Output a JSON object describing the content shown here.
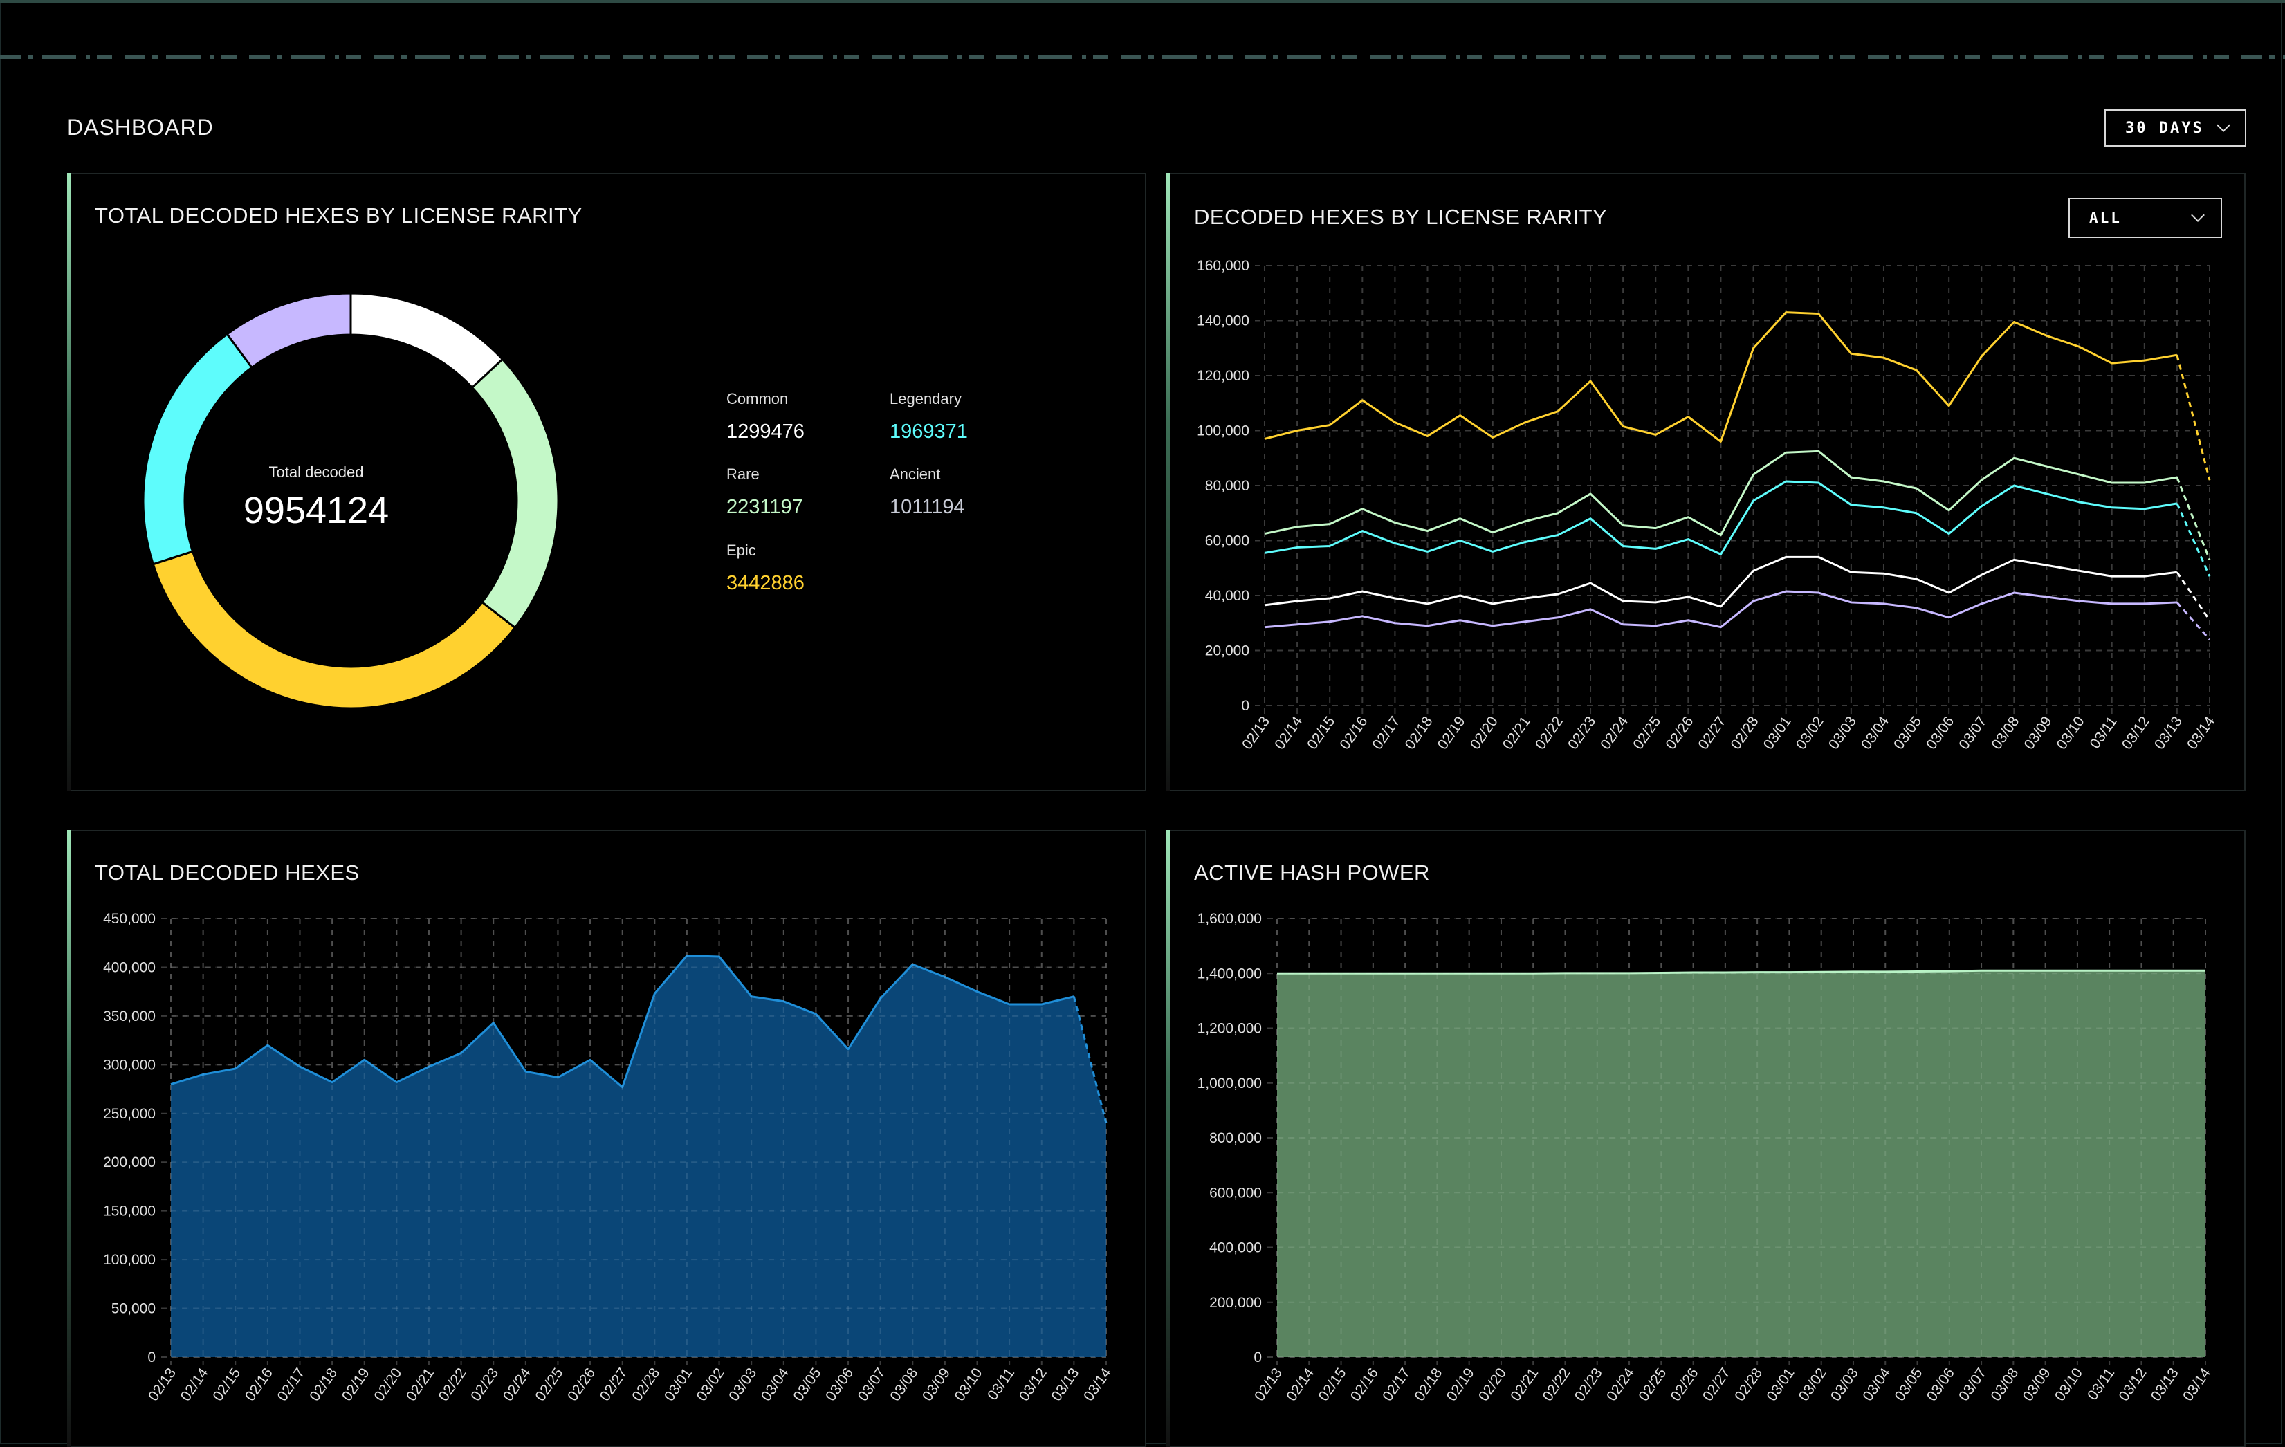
{
  "header": {
    "title": "DASHBOARD",
    "range_select": "30 DAYS"
  },
  "colors": {
    "common": "#ffffff",
    "legendary": "#5efcfc",
    "rare": "#c4f8c8",
    "epic": "#ffd12f",
    "ancient": "#c7b8ff",
    "total_fill": "#0b4a7d",
    "total_line": "#1f8ed8",
    "hash_fill": "#5f8b65",
    "hash_line": "#b9f3c6"
  },
  "panels": {
    "rarity_total": {
      "title": "TOTAL DECODED HEXES BY LICENSE RARITY",
      "center_label": "Total decoded",
      "center_value": "9954124",
      "legend": [
        {
          "name": "Common",
          "value": "1299476"
        },
        {
          "name": "Legendary",
          "value": "1969371"
        },
        {
          "name": "Rare",
          "value": "2231197"
        },
        {
          "name": "Ancient",
          "value": "1011194"
        },
        {
          "name": "Epic",
          "value": "3442886"
        }
      ]
    },
    "rarity_daily": {
      "title": "DECODED HEXES BY LICENSE RARITY",
      "filter_select": "ALL"
    },
    "total_daily": {
      "title": "TOTAL DECODED HEXES"
    },
    "hash_power": {
      "title": "ACTIVE HASH POWER"
    }
  },
  "chart_data": [
    {
      "type": "pie",
      "variant": "donut",
      "categories": [
        "Common",
        "Rare",
        "Epic",
        "Legendary",
        "Ancient"
      ],
      "values": [
        1299476,
        2231197,
        3442886,
        1969371,
        1011194
      ],
      "title": "TOTAL DECODED HEXES BY LICENSE RARITY"
    },
    {
      "type": "line",
      "title": "DECODED HEXES BY LICENSE RARITY",
      "categories": [
        "02/13",
        "02/14",
        "02/15",
        "02/16",
        "02/17",
        "02/18",
        "02/19",
        "02/20",
        "02/21",
        "02/22",
        "02/23",
        "02/24",
        "02/25",
        "02/26",
        "02/27",
        "02/28",
        "03/01",
        "03/02",
        "03/03",
        "03/04",
        "03/05",
        "03/06",
        "03/07",
        "03/08",
        "03/09",
        "03/10",
        "03/11",
        "03/12",
        "03/13",
        "03/14"
      ],
      "ylim": [
        0,
        160000
      ],
      "yticks": [
        "0",
        "20,000",
        "40,000",
        "60,000",
        "80,000",
        "100,000",
        "120,000",
        "140,000",
        "160,000"
      ],
      "grid": true,
      "last_point_dashed": true,
      "series": [
        {
          "key": "epic",
          "values": [
            97000,
            100000,
            102000,
            111000,
            103000,
            98000,
            105500,
            97500,
            103000,
            107000,
            118000,
            101500,
            98500,
            105000,
            96000,
            130000,
            143000,
            142500,
            128000,
            126500,
            122000,
            109000,
            127000,
            139500,
            134500,
            130500,
            124500,
            125500,
            127500,
            82000
          ]
        },
        {
          "key": "rare",
          "values": [
            62500,
            65000,
            66000,
            71500,
            66500,
            63500,
            68000,
            63000,
            67000,
            70000,
            77000,
            65500,
            64500,
            68500,
            62000,
            84000,
            92000,
            92500,
            83000,
            81500,
            79000,
            71000,
            82000,
            90000,
            87000,
            84000,
            81000,
            81000,
            83000,
            53000
          ]
        },
        {
          "key": "legendary",
          "values": [
            55500,
            57500,
            58000,
            63500,
            59000,
            56000,
            60000,
            56000,
            59500,
            62000,
            68000,
            58000,
            57000,
            60500,
            55000,
            74500,
            81500,
            81000,
            73000,
            72000,
            70000,
            62500,
            72500,
            80000,
            77000,
            74000,
            72000,
            71500,
            73500,
            47000
          ]
        },
        {
          "key": "common",
          "values": [
            36500,
            38000,
            39000,
            41500,
            39000,
            37000,
            40000,
            37000,
            39000,
            40500,
            44500,
            38000,
            37500,
            39500,
            36000,
            49000,
            54000,
            54000,
            48500,
            48000,
            46000,
            41000,
            47500,
            53000,
            51000,
            49000,
            47000,
            47000,
            48500,
            31000
          ]
        },
        {
          "key": "ancient",
          "values": [
            28500,
            29500,
            30500,
            32500,
            30000,
            29000,
            31000,
            29000,
            30500,
            32000,
            35000,
            29500,
            29000,
            31000,
            28500,
            38000,
            41500,
            41000,
            37500,
            37000,
            35500,
            32000,
            37000,
            41000,
            39500,
            38000,
            37000,
            37000,
            37500,
            24000
          ]
        }
      ]
    },
    {
      "type": "area",
      "title": "TOTAL DECODED HEXES",
      "categories": [
        "02/13",
        "02/14",
        "02/15",
        "02/16",
        "02/17",
        "02/18",
        "02/19",
        "02/20",
        "02/21",
        "02/22",
        "02/23",
        "02/24",
        "02/25",
        "02/26",
        "02/27",
        "02/28",
        "03/01",
        "03/02",
        "03/03",
        "03/04",
        "03/05",
        "03/06",
        "03/07",
        "03/08",
        "03/09",
        "03/10",
        "03/11",
        "03/12",
        "03/13",
        "03/14"
      ],
      "ylim": [
        0,
        450000
      ],
      "yticks": [
        "0",
        "50,000",
        "100,000",
        "150,000",
        "200,000",
        "250,000",
        "300,000",
        "350,000",
        "400,000",
        "450,000"
      ],
      "grid": true,
      "last_point_dashed": true,
      "values": [
        280000,
        290000,
        296000,
        320000,
        298000,
        282000,
        305000,
        282000,
        298000,
        312000,
        343000,
        293000,
        287000,
        305000,
        277000,
        373000,
        412000,
        411000,
        370000,
        365000,
        352000,
        316000,
        368000,
        403000,
        390000,
        375000,
        362000,
        362000,
        370000,
        240000
      ]
    },
    {
      "type": "area",
      "title": "ACTIVE HASH POWER",
      "categories": [
        "02/13",
        "02/14",
        "02/15",
        "02/16",
        "02/17",
        "02/18",
        "02/19",
        "02/20",
        "02/21",
        "02/22",
        "02/23",
        "02/24",
        "02/25",
        "02/26",
        "02/27",
        "02/28",
        "03/01",
        "03/02",
        "03/03",
        "03/04",
        "03/05",
        "03/06",
        "03/07",
        "03/08",
        "03/09",
        "03/10",
        "03/11",
        "03/12",
        "03/13",
        "03/14"
      ],
      "ylim": [
        0,
        1600000
      ],
      "yticks": [
        "0",
        "200,000",
        "400,000",
        "600,000",
        "800,000",
        "1,000,000",
        "1,200,000",
        "1,400,000",
        "1,600,000"
      ],
      "grid": true,
      "values": [
        1400000,
        1400000,
        1400000,
        1400000,
        1400000,
        1400000,
        1400000,
        1400000,
        1400000,
        1401000,
        1401000,
        1401000,
        1402000,
        1403000,
        1403000,
        1404000,
        1404000,
        1405000,
        1406000,
        1406000,
        1407000,
        1408000,
        1410000,
        1410000,
        1410000,
        1410000,
        1410000,
        1410000,
        1410000,
        1410000
      ]
    }
  ]
}
